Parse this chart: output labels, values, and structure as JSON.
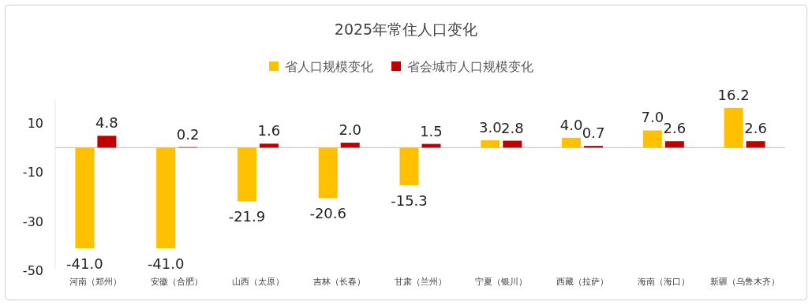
{
  "chart_data": {
    "type": "bar",
    "title": "2025年常住人口变化",
    "categories": [
      "河南（郑州）",
      "安徽（合肥）",
      "山西（太原）",
      "吉林（长春）",
      "甘肃（兰州）",
      "宁夏（银川）",
      "西藏（拉萨）",
      "海南（海口）",
      "新疆（乌鲁木齐）"
    ],
    "series": [
      {
        "name": "省人口规模变化",
        "color": "#ffc000",
        "values": [
          -41.0,
          -41.0,
          -21.9,
          -20.6,
          -15.3,
          3.0,
          4.0,
          7.0,
          16.2
        ],
        "value_labels": [
          "-41.0",
          "-41.0",
          "-21.9",
          "-20.6",
          "-15.3",
          "3.0",
          "4.0",
          "7.0",
          "16.2"
        ]
      },
      {
        "name": "省会城市人口规模变化",
        "color": "#c00000",
        "values": [
          4.8,
          0.2,
          1.6,
          2.0,
          1.5,
          2.8,
          0.7,
          2.6,
          2.6
        ],
        "value_labels": [
          "4.8",
          "0.2",
          "1.6",
          "2.0",
          "1.5",
          "2.8",
          "0.7",
          "2.6",
          "2.6"
        ]
      }
    ],
    "ylim": [
      -50,
      20
    ],
    "yticks": [
      10,
      -10,
      -30,
      -50
    ],
    "grid": false,
    "legend": "top"
  }
}
